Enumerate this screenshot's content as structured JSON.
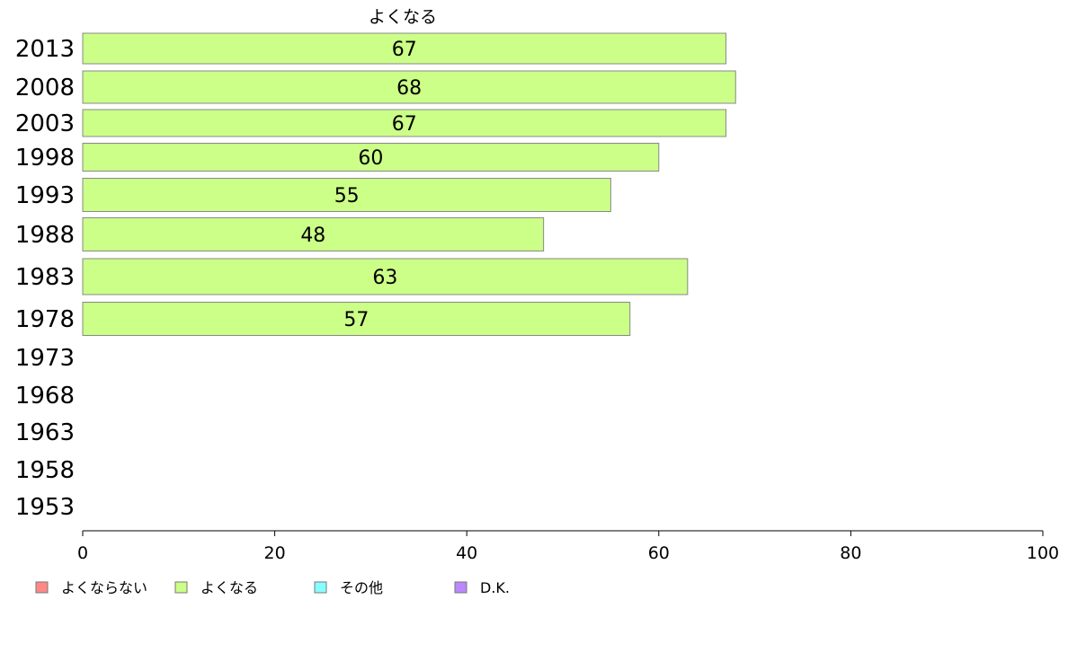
{
  "chart_data": {
    "type": "bar",
    "orientation": "horizontal",
    "categories": [
      "2013",
      "2008",
      "2003",
      "1998",
      "1993",
      "1988",
      "1983",
      "1978",
      "1973",
      "1968",
      "1963",
      "1958",
      "1953"
    ],
    "series": [
      {
        "name": "よくなる",
        "color": "#ccff88",
        "values": [
          67,
          68,
          67,
          60,
          55,
          48,
          63,
          57,
          null,
          null,
          null,
          null,
          null
        ]
      }
    ],
    "xlim": [
      0,
      100
    ],
    "xticks": [
      "0",
      "20",
      "40",
      "60",
      "80",
      "100"
    ],
    "grid": false,
    "legend": {
      "placement": "bottom-left",
      "items": [
        {
          "label": "よくならない",
          "color": "#ff8888"
        },
        {
          "label": "よくなる",
          "color": "#ccff88"
        },
        {
          "label": "その他",
          "color": "#88ffff"
        },
        {
          "label": "D.K.",
          "color": "#bb88ff"
        }
      ]
    }
  }
}
